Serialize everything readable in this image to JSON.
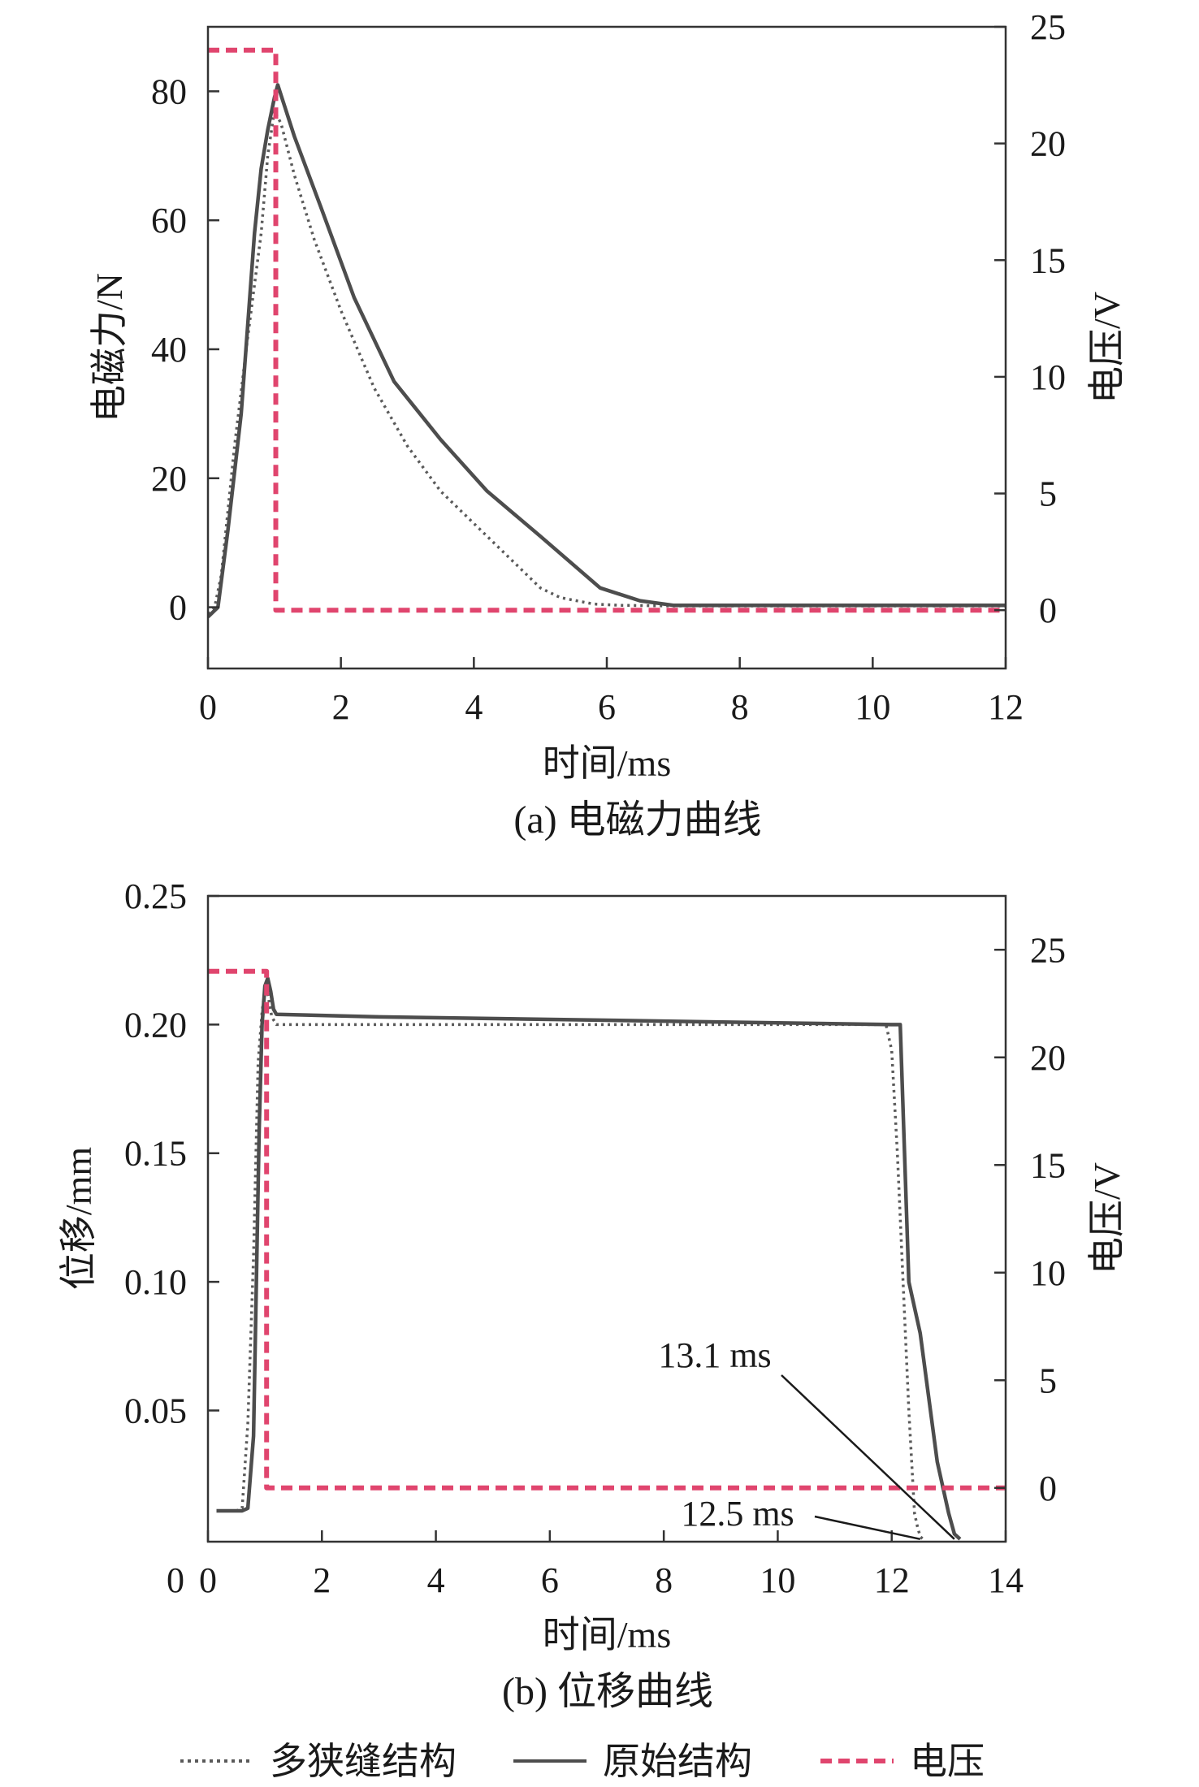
{
  "legend": [
    {
      "key": "multi",
      "label": "多狭缝结构"
    },
    {
      "key": "orig",
      "label": "原始结构"
    },
    {
      "key": "volt",
      "label": "电压"
    }
  ],
  "colors": {
    "multi": "#5a5a5a",
    "orig": "#4d4d4d",
    "volt": "#e0456e",
    "axis": "#333333"
  },
  "chart_data": [
    {
      "type": "line",
      "caption": "(a) 电磁力曲线",
      "xlabel": "时间/ms",
      "ylabel": "电磁力/N",
      "y2label": "电压/V",
      "xlim": [
        0,
        12
      ],
      "ylim": [
        -9.5,
        90
      ],
      "y2lim": [
        -2.5,
        25
      ],
      "xticks": [
        0,
        2,
        4,
        6,
        8,
        10,
        12
      ],
      "yticks": [
        0,
        20,
        40,
        60,
        80
      ],
      "y2ticks": [
        0,
        5,
        10,
        15,
        20,
        25
      ],
      "grid": false,
      "series": [
        {
          "key": "multi",
          "axis": "y",
          "style": "dotted",
          "x": [
            0,
            0.1,
            0.2,
            0.3,
            0.4,
            0.6,
            0.8,
            0.9,
            1.0,
            1.1,
            1.3,
            1.6,
            2.0,
            2.5,
            3.0,
            3.5,
            4.0,
            4.5,
            5.0,
            5.3,
            5.8,
            6.2,
            7.0,
            12.0
          ],
          "y": [
            -1,
            0,
            5,
            15,
            25,
            42,
            58,
            70,
            77,
            75,
            67,
            57,
            46,
            34,
            25,
            18,
            13,
            8,
            3,
            1.5,
            0.5,
            0.3,
            0.2,
            0.2
          ]
        },
        {
          "key": "orig",
          "axis": "y",
          "style": "solid",
          "x": [
            0,
            0.15,
            0.3,
            0.5,
            0.7,
            0.8,
            0.9,
            1.0,
            1.05,
            1.3,
            1.7,
            2.2,
            2.8,
            3.5,
            4.2,
            5.0,
            5.9,
            6.5,
            7.0,
            12.0
          ],
          "y": [
            -1.5,
            0,
            12,
            30,
            58,
            68,
            74,
            79,
            81,
            73,
            62,
            48,
            35,
            26,
            18,
            11,
            3,
            1,
            0.3,
            0.3
          ]
        },
        {
          "key": "volt",
          "axis": "y2",
          "style": "dashed",
          "x": [
            0,
            1.02,
            1.02,
            12.0
          ],
          "y": [
            24,
            24,
            0,
            0
          ]
        }
      ]
    },
    {
      "type": "line",
      "caption": "(b) 位移曲线",
      "xlabel": "时间/ms",
      "ylabel": "位移/mm",
      "y2label": "电压/V",
      "xlim": [
        0,
        14
      ],
      "ylim": [
        -0.001,
        0.25
      ],
      "y2lim": [
        -2.5,
        27.5
      ],
      "xticks": [
        0,
        2,
        4,
        6,
        8,
        10,
        12,
        14
      ],
      "xtick_labels": [
        "0",
        "2",
        "4",
        "6",
        "8",
        "10",
        "12",
        "14"
      ],
      "yticks": [
        0.05,
        0.1,
        0.15,
        0.2,
        0.25
      ],
      "ytick_labels": [
        "0.05",
        "0.10",
        "0.15",
        "0.20",
        "0.25"
      ],
      "y2ticks": [
        0,
        5,
        10,
        15,
        20,
        25
      ],
      "grid": false,
      "annotations": [
        {
          "text": "13.1 ms",
          "x": 13.1,
          "y": 0
        },
        {
          "text": "12.5 ms",
          "x": 12.5,
          "y": 0
        }
      ],
      "series": [
        {
          "key": "multi",
          "axis": "y",
          "style": "dotted",
          "x": [
            0.15,
            0.5,
            0.6,
            0.7,
            0.8,
            0.88,
            0.95,
            1.0,
            1.05,
            1.12,
            1.2,
            3.0,
            6.0,
            9.0,
            11.9,
            12.0,
            12.1,
            12.2,
            12.3,
            12.4,
            12.45,
            12.5,
            12.55
          ],
          "y": [
            0.011,
            0.011,
            0.012,
            0.045,
            0.11,
            0.185,
            0.205,
            0.214,
            0.212,
            0.203,
            0.2,
            0.2,
            0.2,
            0.2,
            0.2,
            0.19,
            0.15,
            0.1,
            0.05,
            0.01,
            0.005,
            0.001,
            0
          ]
        },
        {
          "key": "orig",
          "axis": "y",
          "style": "solid",
          "x": [
            0.15,
            0.5,
            0.6,
            0.7,
            0.8,
            0.85,
            0.9,
            0.95,
            1.0,
            1.05,
            1.1,
            1.15,
            1.2,
            3.0,
            6.0,
            9.0,
            12.0,
            12.15,
            12.3,
            12.5,
            12.8,
            13.0,
            13.1,
            13.2
          ],
          "y": [
            0.011,
            0.011,
            0.011,
            0.012,
            0.04,
            0.1,
            0.16,
            0.2,
            0.215,
            0.218,
            0.213,
            0.206,
            0.204,
            0.203,
            0.202,
            0.201,
            0.2,
            0.2,
            0.1,
            0.08,
            0.03,
            0.01,
            0.002,
            0
          ]
        },
        {
          "key": "volt",
          "axis": "y2",
          "style": "dashed",
          "x": [
            0,
            1.03,
            1.03,
            14.0
          ],
          "y": [
            24,
            24,
            0,
            0
          ]
        }
      ]
    }
  ]
}
